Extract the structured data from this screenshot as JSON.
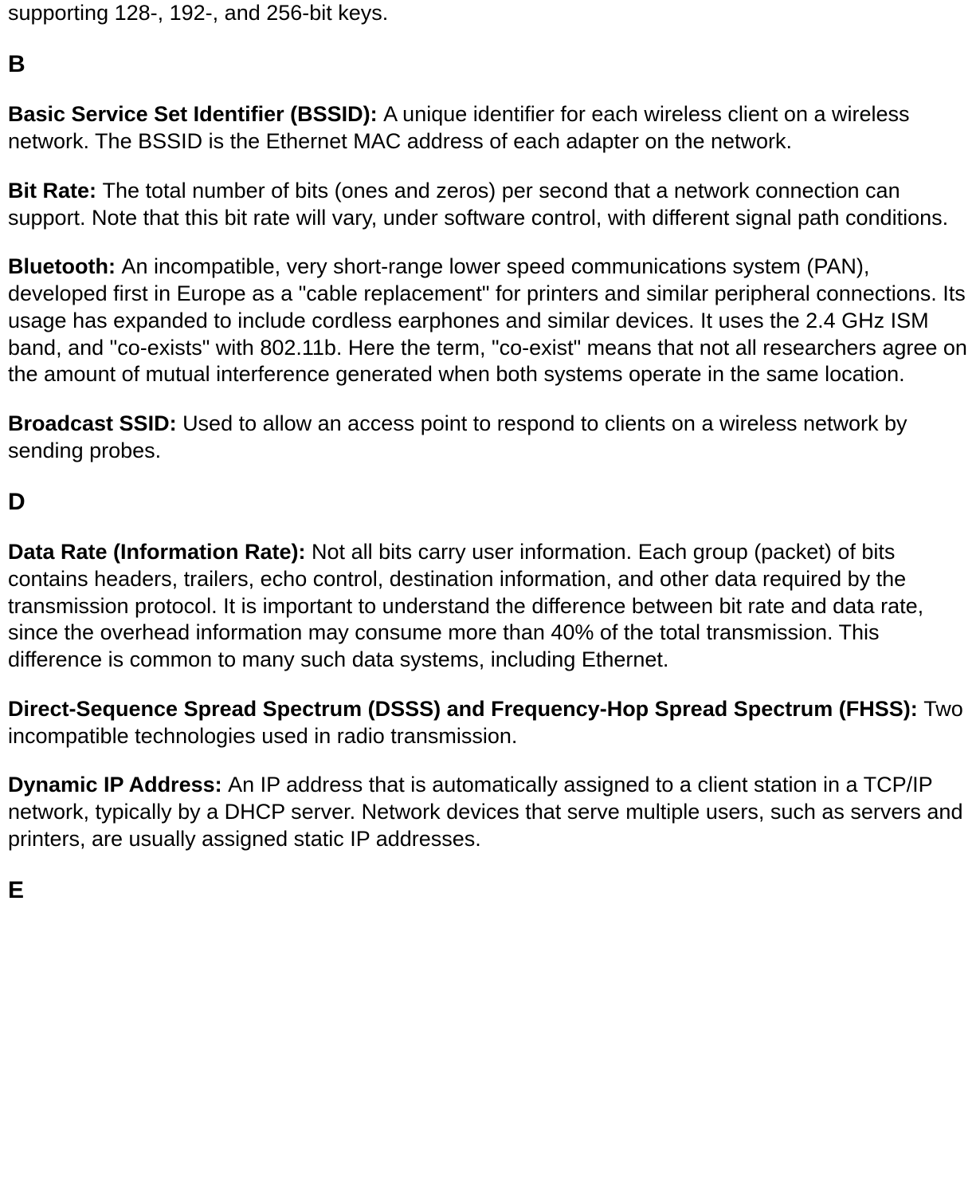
{
  "intro_fragment": "supporting 128-, 192-, and 256-bit keys.",
  "sections": {
    "B": {
      "heading": "B",
      "entries": [
        {
          "term": "Basic Service Set Identifier (BSSID): ",
          "definition": "A unique identifier for each wireless client on a wireless network. The BSSID is the Ethernet MAC address of each adapter on the network."
        },
        {
          "term": "Bit Rate: ",
          "definition": "The total number of bits (ones and zeros) per second that a network connection can support. Note that this bit rate will vary, under software control, with different signal path conditions."
        },
        {
          "term": "Bluetooth: ",
          "definition": "An incompatible, very short-range lower speed communications system (PAN), developed first in Europe as a \"cable replacement\" for printers and similar peripheral connections. Its usage has expanded to include cordless earphones and similar devices. It uses the 2.4 GHz ISM band, and \"co-exists\" with 802.11b. Here the term, \"co-exist\" means that not all researchers agree on the amount of mutual interference generated when both systems operate in the same location."
        },
        {
          "term": "Broadcast SSID: ",
          "definition": "Used to allow an access point to respond to clients on a wireless network by sending probes."
        }
      ]
    },
    "D": {
      "heading": "D",
      "entries": [
        {
          "term": "Data Rate (Information Rate): ",
          "definition": "Not all bits carry user information. Each group (packet) of bits contains headers, trailers, echo control, destination information, and other data required by the transmission protocol. It is important to understand the difference between bit rate and data rate, since the overhead information may consume more than 40% of the total transmission. This difference is common to many such data systems, including Ethernet."
        },
        {
          "term": "Direct-Sequence Spread Spectrum (DSSS) and Frequency-Hop Spread Spectrum (FHSS): ",
          "definition": "Two incompatible technologies used in radio transmission."
        },
        {
          "term": "Dynamic IP Address:  ",
          "definition": "An IP address that is automatically assigned to a client station in a TCP/IP network, typically by a DHCP server. Network devices that serve multiple users, such as servers and printers, are usually assigned static IP addresses."
        }
      ]
    },
    "E": {
      "heading": "E"
    }
  }
}
